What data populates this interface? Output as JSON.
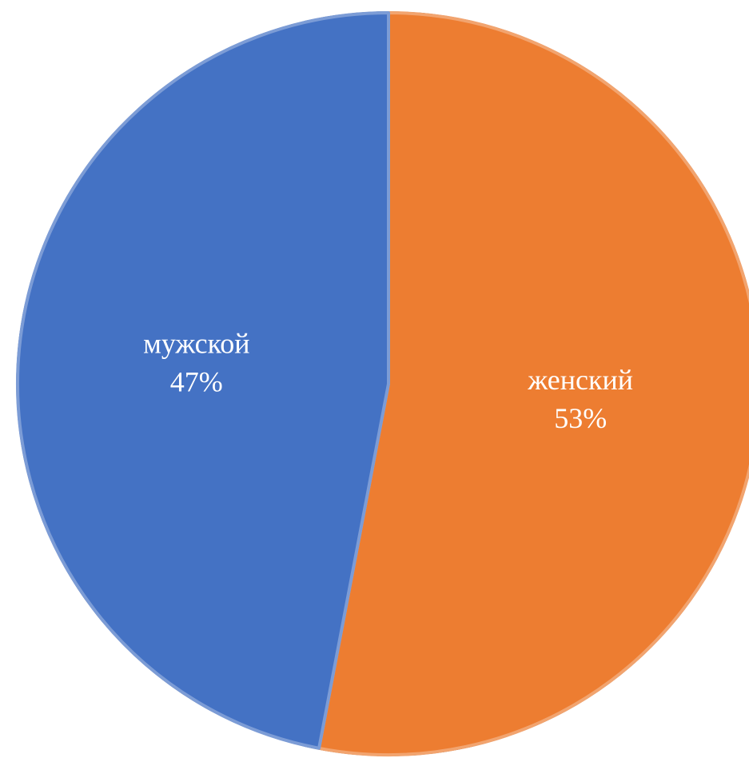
{
  "chart_data": {
    "type": "pie",
    "categories": [
      "женский",
      "мужской"
    ],
    "values": [
      53,
      47
    ],
    "value_labels": [
      "53%",
      "47%"
    ],
    "colors": [
      "#ed7d31",
      "#4472c4"
    ]
  }
}
